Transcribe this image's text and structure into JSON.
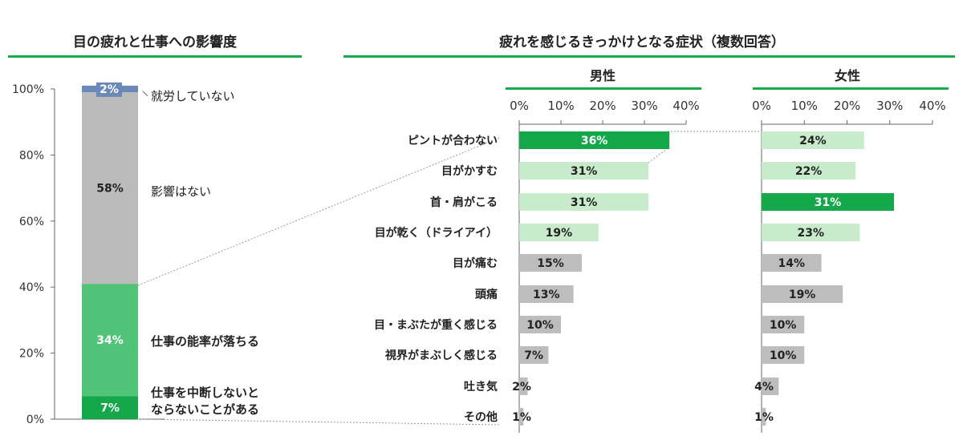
{
  "colors": {
    "accent": "#15a84a",
    "light_green": "#c8ebcb",
    "mid_green": "#4cc274",
    "gray": "#bdbdbd",
    "blue": "#6a89b8",
    "rule": "#1aa84a"
  },
  "chart_data": [
    {
      "type": "bar",
      "stacked": true,
      "title": "目の疲れと仕事への影響度",
      "yticks": [
        "0%",
        "20%",
        "40%",
        "60%",
        "80%",
        "100%"
      ],
      "ylim": [
        0,
        100
      ],
      "segments": [
        {
          "name": "仕事を中断しないとならないことがある",
          "value": 7,
          "label": "7%",
          "color": "#15a84a",
          "text_color": "#fff"
        },
        {
          "name": "仕事の能率が落ちる",
          "value": 34,
          "label": "34%",
          "color": "#52c47a",
          "text_color": "#fff"
        },
        {
          "name": "影響はない",
          "value": 58,
          "label": "58%",
          "color": "#bbbbbb",
          "text_color": "#222"
        },
        {
          "name": "就労していない",
          "value": 2,
          "label": "2%",
          "color": "#6a89b8",
          "text_color": "#fff"
        }
      ],
      "legend_labels": [
        "就労していない",
        "影響はない",
        "仕事の能率が落ちる",
        "仕事を中断しないと",
        "ならないことがある"
      ]
    },
    {
      "type": "bar",
      "orientation": "horizontal",
      "title": "疲れを感じるきっかけとなる症状（複数回答）",
      "categories": [
        "ピントが合わない",
        "目がかすむ",
        "首・肩がこる",
        "目が乾く（ドライアイ）",
        "目が痛む",
        "頭痛",
        "目・まぶたが重く感じる",
        "視界がまぶしく感じる",
        "吐き気",
        "その他"
      ],
      "xticks": [
        "0%",
        "10%",
        "20%",
        "30%",
        "40%"
      ],
      "xlim": [
        0,
        40
      ],
      "series": [
        {
          "name": "男性",
          "values": [
            36,
            31,
            31,
            19,
            15,
            13,
            10,
            7,
            2,
            1
          ],
          "labels": [
            "36%",
            "31%",
            "31%",
            "19%",
            "15%",
            "13%",
            "10%",
            "7%",
            "2%",
            "1%"
          ],
          "styles": [
            "dark",
            "light",
            "light",
            "light",
            "gray",
            "gray",
            "gray",
            "gray",
            "gray",
            "gray"
          ]
        },
        {
          "name": "女性",
          "values": [
            24,
            22,
            31,
            23,
            14,
            19,
            10,
            10,
            4,
            1
          ],
          "labels": [
            "24%",
            "22%",
            "31%",
            "23%",
            "14%",
            "19%",
            "10%",
            "10%",
            "4%",
            "1%"
          ],
          "styles": [
            "light",
            "light",
            "dark",
            "light",
            "gray",
            "gray",
            "gray",
            "gray",
            "gray",
            "gray"
          ]
        }
      ]
    }
  ]
}
